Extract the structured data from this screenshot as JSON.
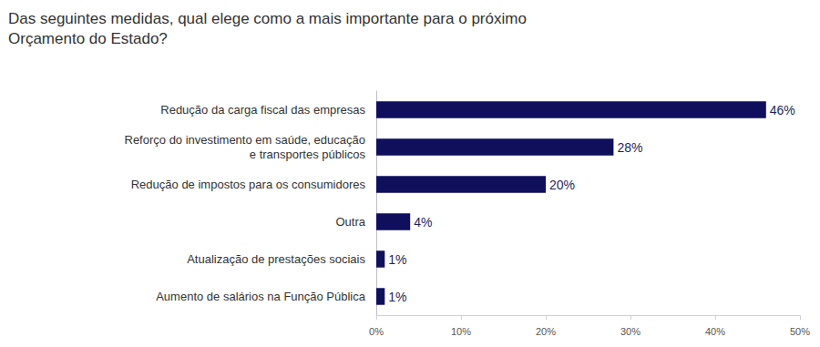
{
  "chart_data": {
    "type": "bar",
    "title": "Das seguintes medidas, qual elege como a mais importante para o próximo\nOrçamento do Estado?",
    "orientation": "horizontal",
    "categories": [
      "Redução da carga fiscal das empresas",
      "Reforço do investimento em saúde, educação\ne transportes públicos",
      "Redução de impostos para os consumidores",
      "Outra",
      "Atualização de prestações sociais",
      "Aumento de salários na Função Pública"
    ],
    "values": [
      46,
      28,
      20,
      4,
      1,
      1
    ],
    "value_labels": [
      "46%",
      "28%",
      "20%",
      "4%",
      "1%",
      "1%"
    ],
    "color": "#0f0f5c",
    "xlim": [
      0,
      50
    ],
    "xticks": [
      {
        "value": 0,
        "label": "0%"
      },
      {
        "value": 10,
        "label": "10%"
      },
      {
        "value": 20,
        "label": "20%"
      },
      {
        "value": 30,
        "label": "30%"
      },
      {
        "value": 40,
        "label": "40%"
      },
      {
        "value": 50,
        "label": "50%"
      }
    ],
    "grid": false,
    "data_labels": true
  }
}
